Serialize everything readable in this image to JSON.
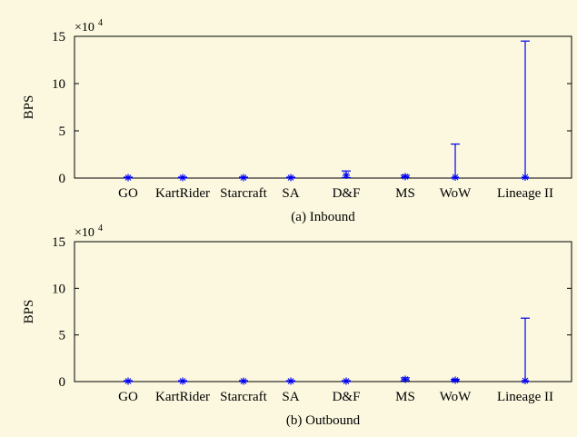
{
  "chart_data": [
    {
      "type": "errorbar",
      "caption": "(a) Inbound",
      "ylabel": "BPS",
      "multiplier": {
        "base": "×10",
        "exp": "4"
      },
      "ylim": [
        0,
        150000
      ],
      "yticks": [
        0,
        50000,
        100000,
        150000
      ],
      "ytick_labels": [
        "0",
        "5",
        "10",
        "15"
      ],
      "categories": [
        "GO",
        "KartRider",
        "Starcraft",
        "SA",
        "D&F",
        "MS",
        "WoW",
        "Lineage II"
      ],
      "points": [
        {
          "category": "GO",
          "mean": 500,
          "low": 0,
          "high": 1000
        },
        {
          "category": "KartRider",
          "mean": 500,
          "low": 0,
          "high": 1000
        },
        {
          "category": "Starcraft",
          "mean": 500,
          "low": 0,
          "high": 1000
        },
        {
          "category": "SA",
          "mean": 500,
          "low": 0,
          "high": 1000
        },
        {
          "category": "D&F",
          "mean": 3000,
          "low": 500,
          "high": 7500
        },
        {
          "category": "MS",
          "mean": 1500,
          "low": 500,
          "high": 3000
        },
        {
          "category": "WoW",
          "mean": 1000,
          "low": 0,
          "high": 36000
        },
        {
          "category": "Lineage II",
          "mean": 1000,
          "low": 0,
          "high": 145000
        }
      ],
      "grid": false,
      "color": "#0000ee"
    },
    {
      "type": "errorbar",
      "caption": "(b) Outbound",
      "ylabel": "BPS",
      "multiplier": {
        "base": "×10",
        "exp": "4"
      },
      "ylim": [
        0,
        150000
      ],
      "yticks": [
        0,
        50000,
        100000,
        150000
      ],
      "ytick_labels": [
        "0",
        "5",
        "10",
        "15"
      ],
      "categories": [
        "GO",
        "KartRider",
        "Starcraft",
        "SA",
        "D&F",
        "MS",
        "WoW",
        "Lineage II"
      ],
      "points": [
        {
          "category": "GO",
          "mean": 500,
          "low": 0,
          "high": 1000
        },
        {
          "category": "KartRider",
          "mean": 500,
          "low": 0,
          "high": 1000
        },
        {
          "category": "Starcraft",
          "mean": 500,
          "low": 0,
          "high": 1000
        },
        {
          "category": "SA",
          "mean": 500,
          "low": 0,
          "high": 1000
        },
        {
          "category": "D&F",
          "mean": 500,
          "low": 0,
          "high": 1000
        },
        {
          "category": "MS",
          "mean": 2500,
          "low": 1000,
          "high": 4000
        },
        {
          "category": "WoW",
          "mean": 1500,
          "low": 500,
          "high": 2500
        },
        {
          "category": "Lineage II",
          "mean": 1000,
          "low": 0,
          "high": 68000
        }
      ],
      "grid": false,
      "color": "#0000ee"
    }
  ]
}
